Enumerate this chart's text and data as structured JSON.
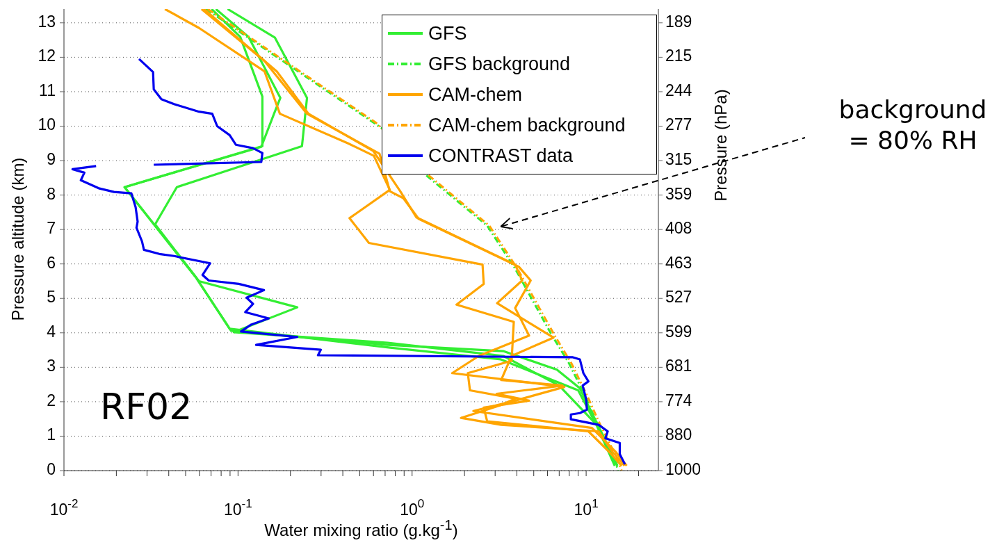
{
  "chart_data": {
    "type": "line",
    "xlabel": "Water mixing ratio (g.kg$^{-1}$)",
    "ylabel": "Pressure altitude (km)",
    "y2label": "Pressure (hPa)",
    "log": "x",
    "grid": "y",
    "legend": "top right",
    "xlim": [
      0.01,
      26
    ],
    "xticks": [
      {
        "value": 0.01,
        "label": "10$^{-2}$"
      },
      {
        "value": 0.02,
        "label": null
      },
      {
        "value": 0.03,
        "label": null
      },
      {
        "value": 0.04,
        "label": null
      },
      {
        "value": 0.05,
        "label": null
      },
      {
        "value": 0.06,
        "label": null
      },
      {
        "value": 0.07,
        "label": null
      },
      {
        "value": 0.08,
        "label": null
      },
      {
        "value": 0.09,
        "label": null
      },
      {
        "value": 0.1,
        "label": "10$^{-1}$"
      },
      {
        "value": 0.2,
        "label": null
      },
      {
        "value": 0.3,
        "label": null
      },
      {
        "value": 0.4,
        "label": null
      },
      {
        "value": 0.5,
        "label": null
      },
      {
        "value": 0.6,
        "label": null
      },
      {
        "value": 0.7,
        "label": null
      },
      {
        "value": 0.8,
        "label": null
      },
      {
        "value": 0.9,
        "label": null
      },
      {
        "value": 1,
        "label": "10$^{0}$"
      },
      {
        "value": 2,
        "label": null
      },
      {
        "value": 3,
        "label": null
      },
      {
        "value": 4,
        "label": null
      },
      {
        "value": 5,
        "label": null
      },
      {
        "value": 6,
        "label": null
      },
      {
        "value": 7,
        "label": null
      },
      {
        "value": 8,
        "label": null
      },
      {
        "value": 9,
        "label": null
      },
      {
        "value": 10,
        "label": "10$^{1}$"
      },
      {
        "value": 20,
        "label": null
      }
    ],
    "ylim": [
      0,
      13.4
    ],
    "yticks": [
      0,
      1,
      2,
      3,
      4,
      5,
      6,
      7,
      8,
      9,
      10,
      11,
      12,
      13
    ],
    "y2_categories": [
      "189",
      "215",
      "244",
      "277",
      "315",
      "359",
      "408",
      "463",
      "527",
      "599",
      "681",
      "774",
      "880",
      "1000"
    ],
    "series": [
      {
        "name": "GFS",
        "color": "#33ee33",
        "line_style": "solid",
        "x": [
          0.0705,
          0.103,
          0.138,
          0.138,
          0.0223,
          0.0575,
          0.0912,
          0.724,
          3.34,
          6.79,
          9.2,
          11.8,
          15.1
        ],
        "values": [
          13.4,
          12.59,
          10.86,
          9.42,
          8.23,
          5.6,
          4.06,
          3.65,
          3.47,
          2.93,
          2.39,
          1.27,
          0.14
        ]
      },
      {
        "color": "#33ee33",
        "line_style": "solid",
        "x": [
          0.0871,
          0.163,
          0.249,
          0.233,
          0.0445,
          0.0334,
          0.0597,
          0.219,
          0.0946,
          0.724,
          3.34,
          6.99,
          11.8,
          15.1
        ],
        "values": [
          13.4,
          12.57,
          10.82,
          9.42,
          8.23,
          7.15,
          5.5,
          4.74,
          4.02,
          3.71,
          3.33,
          2.47,
          1.27,
          0.14
        ]
      },
      {
        "color": "#33ee33",
        "line_style": "solid",
        "x": [
          0.0746,
          0.115,
          0.175,
          0.161,
          0.136,
          0.0223,
          0.0575,
          0.0895,
          0.749,
          3.23,
          9.0,
          11.6,
          14.6
        ],
        "values": [
          13.4,
          12.59,
          10.82,
          10.36,
          9.4,
          8.23,
          5.6,
          4.12,
          3.57,
          3.23,
          2.33,
          1.27,
          0.14
        ]
      },
      {
        "name": "GFS background",
        "color": "#33ee33",
        "line_style": "dashed",
        "x": [
          0.0655,
          0.68,
          1.22,
          2.7,
          3.91,
          6.37,
          7.94,
          9.82,
          11.8,
          14.2,
          15.3
        ],
        "values": [
          13.4,
          9.92,
          8.55,
          7.11,
          5.86,
          3.92,
          3.13,
          2.19,
          1.27,
          0.44,
          0
        ]
      },
      {
        "name": "CAM-chem",
        "color": "#ffa500",
        "line_style": "solid",
        "x": [
          0.038,
          0.0597,
          0.142,
          0.174,
          0.429,
          0.603,
          0.745,
          0.437,
          0.565,
          2.54,
          2.58,
          1.8,
          3.84,
          3.73,
          2.09,
          2.15,
          3.91,
          3.19,
          1.91,
          3.25,
          11.8,
          14.2,
          16.6
        ],
        "values": [
          13.4,
          12.85,
          11.59,
          10.36,
          9.5,
          9.14,
          8.15,
          7.33,
          6.61,
          5.98,
          5.42,
          4.82,
          4.32,
          3.19,
          2.83,
          2.33,
          2.09,
          1.89,
          1.53,
          1.33,
          1.14,
          0.54,
          0.14
        ]
      },
      {
        "color": "#ffa500",
        "line_style": "solid",
        "x": [
          0.0637,
          0.167,
          0.254,
          0.598,
          0.855,
          1.06,
          3.91,
          4.29,
          3.08,
          6.49,
          3.73,
          3.25,
          7.31,
          3.06,
          4.7,
          2.58,
          2.7,
          10.3,
          13.6,
          16.0
        ],
        "values": [
          13.4,
          11.59,
          10.36,
          9.28,
          8.11,
          7.35,
          5.98,
          5.52,
          4.86,
          3.86,
          3.33,
          2.63,
          2.47,
          2.23,
          2.03,
          1.83,
          1.43,
          1.14,
          0.54,
          0.14
        ]
      },
      {
        "color": "#ffa500",
        "line_style": "solid",
        "x": [
          0.0617,
          0.142,
          0.249,
          0.65,
          0.745,
          0.89,
          1.09,
          4.1,
          4.8,
          3.91,
          4.7,
          2.42,
          1.7,
          7.5,
          3.91,
          2.25,
          10.8,
          14.8,
          17.1
        ],
        "values": [
          13.4,
          11.89,
          10.36,
          9.2,
          8.11,
          7.91,
          7.31,
          5.92,
          5.52,
          4.72,
          3.92,
          3.33,
          2.83,
          2.43,
          2.03,
          1.73,
          1.24,
          0.54,
          0.14
        ]
      },
      {
        "name": "CAM-chem background",
        "color": "#ffa500",
        "line_style": "dashed",
        "x": [
          0.067,
          0.62,
          1.26,
          2.78,
          4.03,
          6.6,
          8.2,
          10.1,
          12.2,
          14.8,
          16.0
        ],
        "values": [
          13.4,
          10.1,
          8.55,
          7.11,
          5.86,
          3.92,
          3.13,
          2.19,
          1.27,
          0.44,
          0
        ]
      },
      {
        "name": "CONTRAST data",
        "color": "#0000ee",
        "line_style": "solid",
        "x": [
          0.027,
          0.0325,
          0.0328,
          0.0363,
          0.0429,
          0.0597,
          0.0711,
          0.0759,
          0.0895,
          0.0972,
          0.122,
          0.138,
          0.136,
          0.0328,
          null,
          0.0153,
          0.0112,
          0.0131,
          0.0125,
          0.016,
          0.0194,
          0.0244,
          0.0258,
          0.0265,
          0.0261,
          0.0281,
          0.0288,
          0.0353,
          0.0429,
          0.0692,
          0.0625,
          0.0679,
          0.101,
          0.141,
          0.112,
          0.122,
          0.11,
          0.15,
          0.119,
          0.104,
          0.219,
          0.127,
          0.299,
          0.288,
          8.39,
          9.2,
          9.64,
          10.3,
          9.55,
          10.0,
          10.1,
          9.2,
          8.17,
          8.17,
          11.8,
          13.3,
          12.9,
          15.6,
          15.6,
          16.7
        ],
        "values": [
          11.95,
          11.57,
          11.07,
          10.78,
          10.64,
          10.42,
          10.36,
          10.0,
          9.74,
          9.46,
          9.36,
          9.22,
          8.96,
          8.88,
          null,
          8.84,
          8.75,
          8.65,
          8.43,
          8.19,
          8.09,
          8.05,
          7.65,
          7.23,
          7.05,
          6.65,
          6.41,
          6.29,
          6.23,
          6.02,
          5.68,
          5.52,
          5.42,
          5.24,
          5.02,
          4.84,
          4.6,
          4.42,
          4.24,
          4.04,
          3.88,
          3.65,
          3.51,
          3.35,
          3.29,
          3.23,
          2.83,
          2.59,
          2.47,
          2.07,
          1.77,
          1.67,
          1.63,
          1.49,
          1.33,
          1.14,
          0.94,
          0.8,
          0.48,
          0.18
        ]
      }
    ],
    "annotations": [
      "RF02",
      "background = 80% RH"
    ]
  }
}
